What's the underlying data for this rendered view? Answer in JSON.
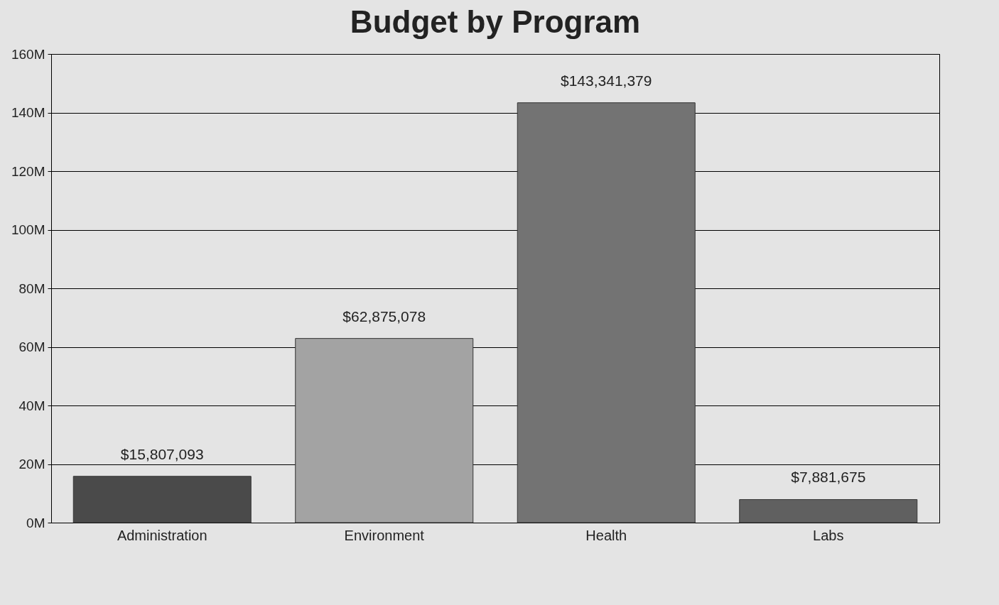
{
  "chart_data": {
    "type": "bar",
    "title": "Budget by Program",
    "categories": [
      "Administration",
      "Environment",
      "Health",
      "Labs"
    ],
    "values": [
      15807093,
      62875078,
      143341379,
      7881675
    ],
    "colors": [
      "#4a4a4a",
      "#a3a3a3",
      "#737373",
      "#606060"
    ],
    "value_labels": [
      "$15,807,093",
      "$62,875,078",
      "$143,341,379",
      "$7,881,675"
    ],
    "ylim": [
      0,
      160000000
    ],
    "yticks": [
      {
        "value": 0,
        "label": "0M"
      },
      {
        "value": 20000000,
        "label": "20M"
      },
      {
        "value": 40000000,
        "label": "40M"
      },
      {
        "value": 60000000,
        "label": "60M"
      },
      {
        "value": 80000000,
        "label": "80M"
      },
      {
        "value": 100000000,
        "label": "100M"
      },
      {
        "value": 120000000,
        "label": "120M"
      },
      {
        "value": 140000000,
        "label": "140M"
      },
      {
        "value": 160000000,
        "label": "160M"
      }
    ],
    "grid": "y"
  }
}
